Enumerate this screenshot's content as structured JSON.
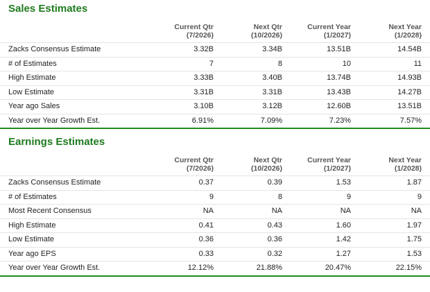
{
  "sales": {
    "title": "Sales Estimates",
    "columns": [
      {
        "line1": "Current Qtr",
        "line2": "(7/2026)"
      },
      {
        "line1": "Next Qtr",
        "line2": "(10/2026)"
      },
      {
        "line1": "Current Year",
        "line2": "(1/2027)"
      },
      {
        "line1": "Next Year",
        "line2": "(1/2028)"
      }
    ],
    "rows": [
      {
        "label": "Zacks Consensus Estimate",
        "values": [
          "3.32B",
          "3.34B",
          "13.51B",
          "14.54B"
        ]
      },
      {
        "label": "# of Estimates",
        "values": [
          "7",
          "8",
          "10",
          "11"
        ]
      },
      {
        "label": "High Estimate",
        "values": [
          "3.33B",
          "3.40B",
          "13.74B",
          "14.93B"
        ]
      },
      {
        "label": "Low Estimate",
        "values": [
          "3.31B",
          "3.31B",
          "13.43B",
          "14.27B"
        ]
      },
      {
        "label": "Year ago Sales",
        "values": [
          "3.10B",
          "3.12B",
          "12.60B",
          "13.51B"
        ]
      },
      {
        "label": "Year over Year Growth Est.",
        "values": [
          "6.91%",
          "7.09%",
          "7.23%",
          "7.57%"
        ]
      }
    ]
  },
  "earnings": {
    "title": "Earnings Estimates",
    "columns": [
      {
        "line1": "Current Qtr",
        "line2": "(7/2026)"
      },
      {
        "line1": "Next Qtr",
        "line2": "(10/2026)"
      },
      {
        "line1": "Current Year",
        "line2": "(1/2027)"
      },
      {
        "line1": "Next Year",
        "line2": "(1/2028)"
      }
    ],
    "rows": [
      {
        "label": "Zacks Consensus Estimate",
        "values": [
          "0.37",
          "0.39",
          "1.53",
          "1.87"
        ]
      },
      {
        "label": "# of Estimates",
        "values": [
          "9",
          "8",
          "9",
          "9"
        ]
      },
      {
        "label": "Most Recent Consensus",
        "values": [
          "NA",
          "NA",
          "NA",
          "NA"
        ]
      },
      {
        "label": "High Estimate",
        "values": [
          "0.41",
          "0.43",
          "1.60",
          "1.97"
        ]
      },
      {
        "label": "Low Estimate",
        "values": [
          "0.36",
          "0.36",
          "1.42",
          "1.75"
        ]
      },
      {
        "label": "Year ago EPS",
        "values": [
          "0.33",
          "0.32",
          "1.27",
          "1.53"
        ]
      },
      {
        "label": "Year over Year Growth Est.",
        "values": [
          "12.12%",
          "21.88%",
          "20.47%",
          "22.15%"
        ]
      }
    ]
  },
  "colors": {
    "accent": "#1e7a1e",
    "rule": "#1f8a1f"
  }
}
